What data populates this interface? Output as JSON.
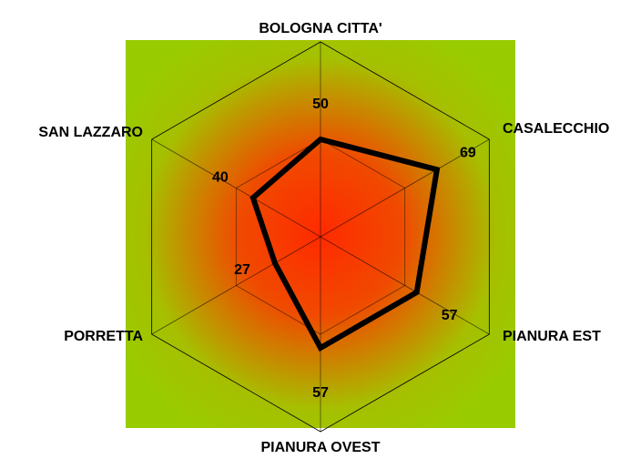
{
  "chart_data": {
    "type": "radar",
    "categories": [
      "BOLOGNA CITTA'",
      "CASALECCHIO",
      "PIANURA EST",
      "PIANURA OVEST",
      "PORRETTA",
      "SAN LAZZARO"
    ],
    "values": [
      50,
      69,
      57,
      57,
      27,
      40
    ],
    "color": "#000000",
    "rlim": [
      0,
      100
    ],
    "rticks": [
      0,
      50,
      100
    ],
    "grid": true
  }
}
